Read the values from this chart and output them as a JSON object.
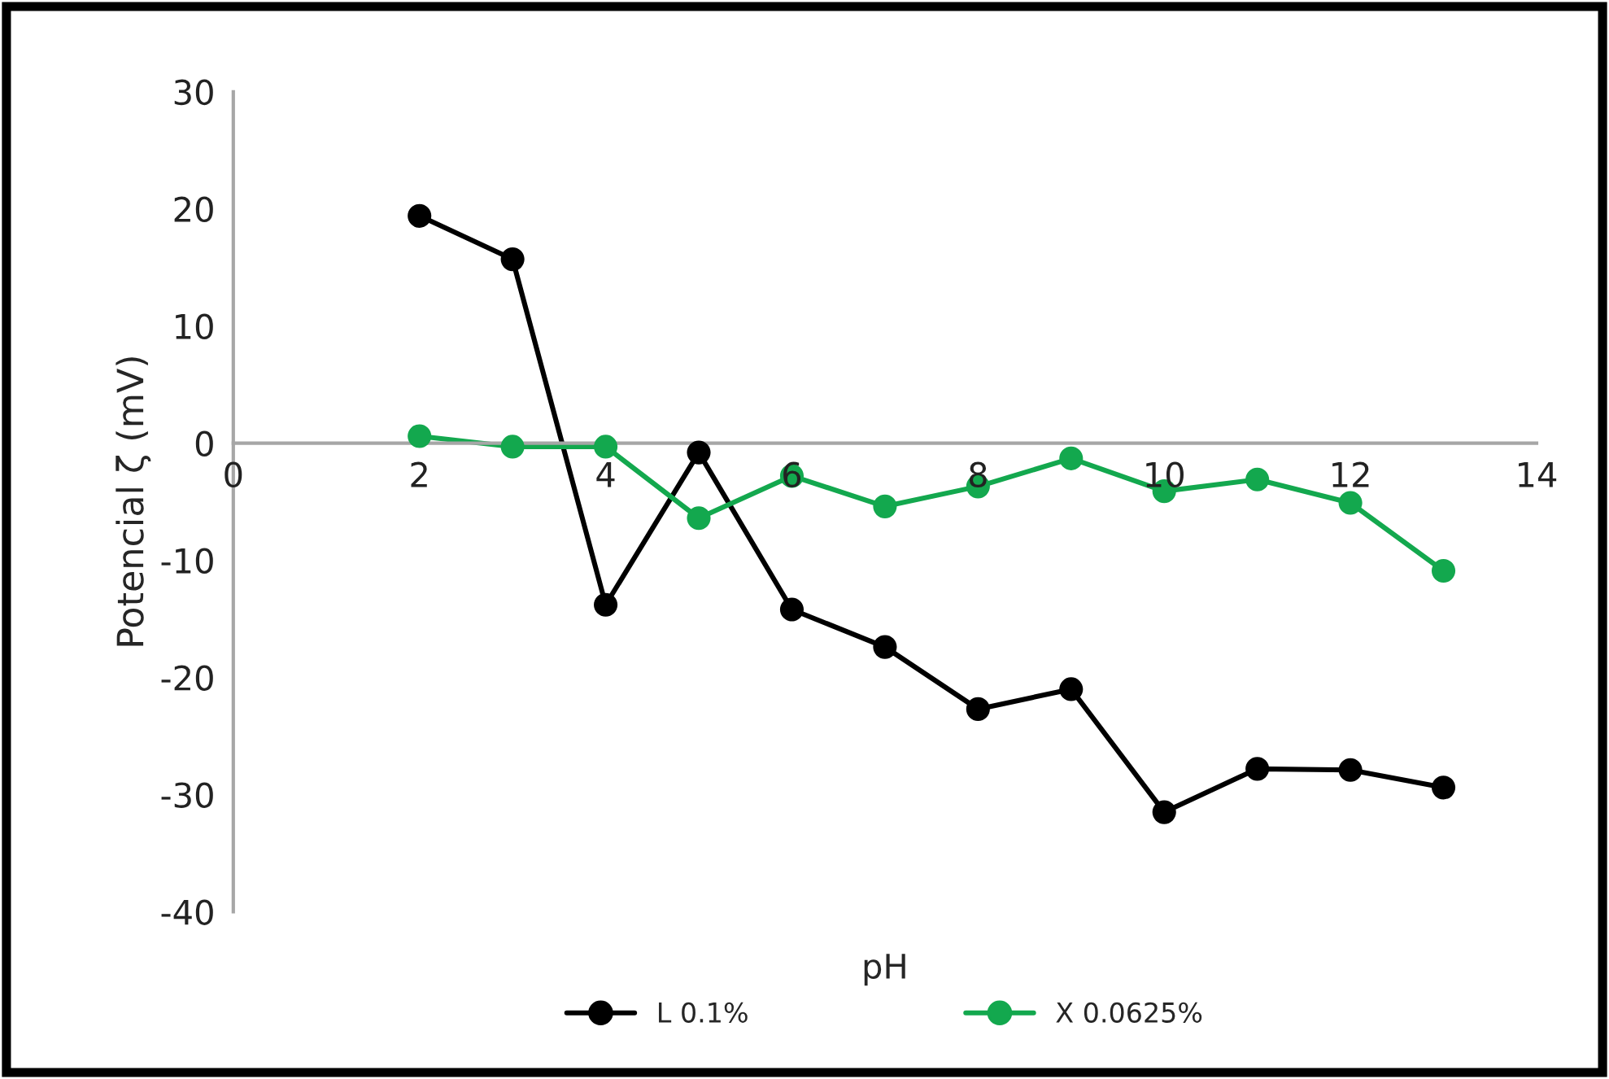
{
  "chart_data": {
    "type": "line",
    "xlabel": "pH",
    "ylabel": "Potencial ζ (mV)",
    "xlim": [
      0,
      14
    ],
    "xticks": [
      0,
      2,
      4,
      6,
      8,
      10,
      12,
      14
    ],
    "ylim": [
      -40,
      30
    ],
    "yticks": [
      -40,
      -30,
      -20,
      -10,
      0,
      10,
      20,
      30
    ],
    "grid": false,
    "legend": "bottom",
    "marker": "circle",
    "line_style": "solid",
    "series": [
      {
        "name": "L 0.1%",
        "color": "#000000",
        "x": [
          2,
          3,
          4,
          5,
          6,
          7,
          8,
          9,
          10,
          11,
          12,
          13
        ],
        "values": [
          19.4,
          15.7,
          -13.8,
          -0.8,
          -14.2,
          -17.4,
          -22.7,
          -21.0,
          -31.5,
          -27.8,
          -27.9,
          -29.4
        ]
      },
      {
        "name": "X 0.0625%",
        "color": "#13a84e",
        "x": [
          2,
          3,
          4,
          5,
          6,
          7,
          8,
          9,
          10,
          11,
          12,
          13
        ],
        "values": [
          0.6,
          -0.3,
          -0.3,
          -6.4,
          -2.8,
          -5.4,
          -3.7,
          -1.3,
          -4.1,
          -3.1,
          -5.1,
          -10.9
        ]
      }
    ]
  }
}
